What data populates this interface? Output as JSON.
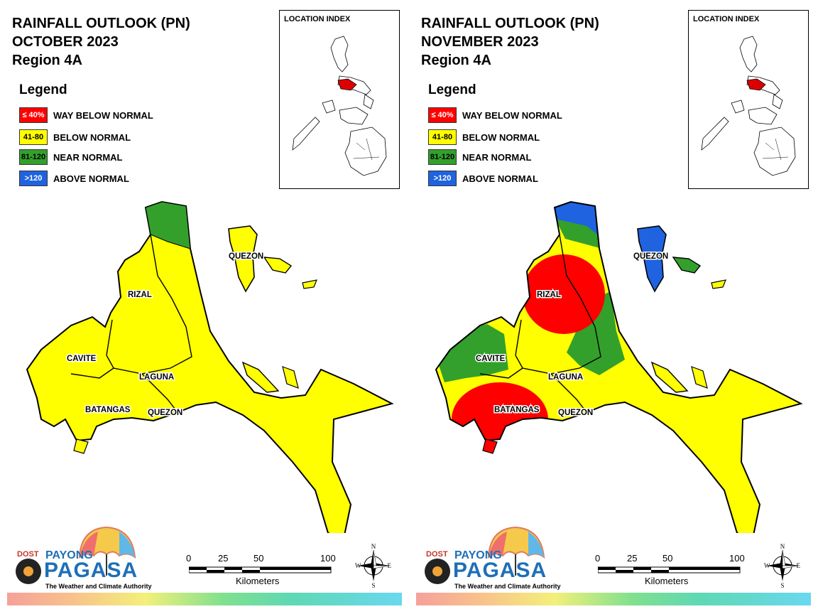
{
  "legend": {
    "title": "Legend",
    "items": [
      {
        "range": "≤ 40%",
        "label": "WAY BELOW NORMAL",
        "color": "#ff0000",
        "text_color": "#ffffff"
      },
      {
        "range": "41-80",
        "label": "BELOW NORMAL",
        "color": "#ffff00",
        "text_color": "#000000"
      },
      {
        "range": "81-120",
        "label": "NEAR NORMAL",
        "color": "#33a02c",
        "text_color": "#000000"
      },
      {
        "range": ">120",
        "label": "ABOVE NORMAL",
        "color": "#1f63e0",
        "text_color": "#ffffff"
      }
    ]
  },
  "maps": [
    {
      "title_line1": "RAINFALL OUTLOOK (PN)",
      "title_line2": "OCTOBER 2023",
      "title_line3": "Region 4A",
      "index_title": "LOCATION INDEX",
      "provinces": {
        "rizal": "RIZAL",
        "cavite": "CAVITE",
        "laguna": "LAGUNA",
        "batangas": "BATANGAS",
        "quezon_south": "QUEZON",
        "quezon_north": "QUEZON"
      },
      "dominant_category": "BELOW NORMAL",
      "other_categories": [
        "NEAR NORMAL"
      ]
    },
    {
      "title_line1": "RAINFALL OUTLOOK (PN)",
      "title_line2": "NOVEMBER 2023",
      "title_line3": "Region 4A",
      "index_title": "LOCATION INDEX",
      "provinces": {
        "rizal": "RIZAL",
        "cavite": "CAVITE",
        "laguna": "LAGUNA",
        "batangas": "BATANGAS",
        "quezon_south": "QUEZON",
        "quezon_north": "QUEZON"
      },
      "dominant_category": "BELOW NORMAL",
      "other_categories": [
        "WAY BELOW NORMAL",
        "NEAR NORMAL",
        "ABOVE NORMAL"
      ]
    }
  ],
  "scale_bar": {
    "ticks": [
      "0",
      "25",
      "50",
      "100"
    ],
    "unit": "Kilometers"
  },
  "compass": {
    "n": "N",
    "s": "S",
    "e": "E",
    "w": "W"
  },
  "logo": {
    "dost": "DOST",
    "payong": "PAYONG",
    "pagasa": "PAGASA",
    "tagline": "The Weather and Climate Authority"
  }
}
